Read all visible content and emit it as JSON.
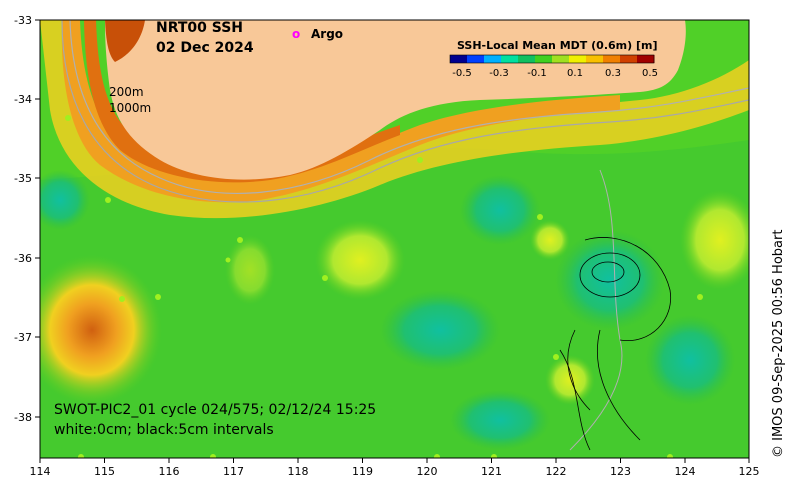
{
  "map": {
    "title_line1": "NRT00 SSH",
    "title_line2": "02 Dec 2024",
    "legend_marker_symbol": "o",
    "legend_label": "Argo",
    "legend_color": "#ff00ff",
    "depth_label_1": "200m",
    "depth_label_2": "1000m",
    "info_line1": "SWOT-PIC2_01 cycle 024/575; 02/12/24 15:25",
    "info_line2": "white:0cm; black:5cm intervals",
    "credit": "© IMOS 09-Sep-2025 00:56 Hobart",
    "land_color": "#f8c898"
  },
  "axes": {
    "x_ticks": [
      "114",
      "115",
      "116",
      "117",
      "118",
      "119",
      "120",
      "121",
      "122",
      "123",
      "124",
      "125"
    ],
    "y_ticks": [
      "-33",
      "-34",
      "-35",
      "-36",
      "-37",
      "-38"
    ]
  },
  "colorbar": {
    "title": "SSH-Local Mean MDT (0.6m) [m]",
    "ticks": [
      "-0.5",
      "-0.3",
      "-0.1",
      "0.1",
      "0.3",
      "0.5"
    ],
    "colors": [
      "#00008f",
      "#0040ff",
      "#00b0ff",
      "#00e0a0",
      "#10c060",
      "#40d020",
      "#a0e020",
      "#f0f000",
      "#f8c000",
      "#f08000",
      "#d04000",
      "#a00000"
    ]
  }
}
